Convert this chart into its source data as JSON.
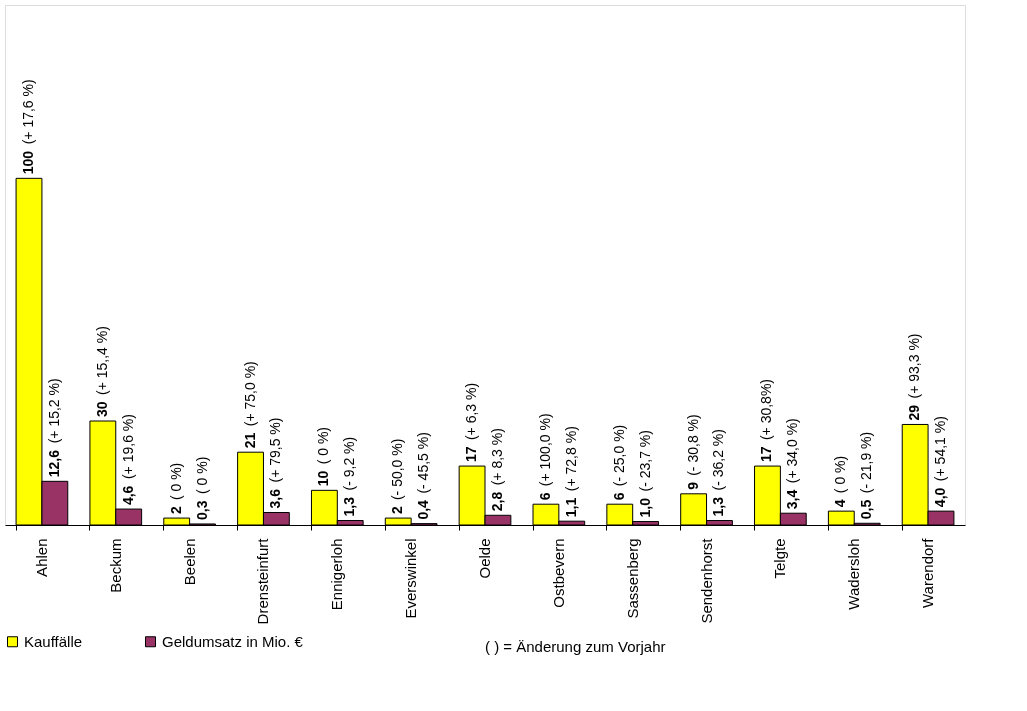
{
  "chart_data": {
    "type": "bar",
    "categories": [
      "Ahlen",
      "Beckum",
      "Beelen",
      "Drensteinfurt",
      "Ennigerloh",
      "Everswinkel",
      "Oelde",
      "Ostbevern",
      "Sassenberg",
      "Sendenhorst",
      "Telgte",
      "Wadersloh",
      "Warendorf"
    ],
    "series": [
      {
        "name": "Kauffälle",
        "color": "#ffff00",
        "values": [
          100,
          30,
          2,
          21,
          10,
          2,
          17,
          6,
          6,
          9,
          17,
          4,
          29
        ],
        "value_labels": [
          "100",
          "30",
          "2",
          "21",
          "10",
          "2",
          "17",
          "6",
          "6",
          "9",
          "17",
          "4",
          "29"
        ]
      },
      {
        "name": "Geldumsatz in Mio. €",
        "color": "#993366",
        "values": [
          12.6,
          4.6,
          0.3,
          3.6,
          1.3,
          0.4,
          2.8,
          1.1,
          1.0,
          1.3,
          3.4,
          0.5,
          4.0
        ],
        "value_labels": [
          "12,6",
          "4,6",
          "0,3",
          "3,6",
          "1,3",
          "0,4",
          "2,8",
          "1,1",
          "1,0",
          "1,3",
          "3,4",
          "0,5",
          "4,0"
        ]
      }
    ],
    "annotations": [
      {
        "text": "(+ 17,6 %)",
        "x": "Ahlen",
        "y": 100
      },
      {
        "text": "(+ 15,2 %)",
        "x": "Ahlen",
        "y": 12.6
      },
      {
        "text": "(+ 15,,4 %)",
        "x": "Beckum",
        "y": 30
      },
      {
        "text": "(+ 19,6 %)",
        "x": "Beckum",
        "y": 4.6
      },
      {
        "text": "( 0 %)",
        "x": "Beelen",
        "y": 2
      },
      {
        "text": "( 0 %)",
        "x": "Beelen",
        "y": 0.3
      },
      {
        "text": "(+ 75,0 %)",
        "x": "Drensteinfurt",
        "y": 21
      },
      {
        "text": "(+ 79,5 %)",
        "x": "Drensteinfurt",
        "y": 3.6
      },
      {
        "text": "( 0 %)",
        "x": "Ennigerloh",
        "y": 10
      },
      {
        "text": "(- 9,2 %)",
        "x": "Ennigerloh",
        "y": 1.3
      },
      {
        "text": "(- 50,0 %)",
        "x": "Everswinkel",
        "y": 2
      },
      {
        "text": "(- 45,5 %)",
        "x": "Everswinkel",
        "y": 0.4
      },
      {
        "text": "(+ 6,3 %)",
        "x": "Oelde",
        "y": 17
      },
      {
        "text": "(+ 8,3 %)",
        "x": "Oelde",
        "y": 2.8
      },
      {
        "text": "(+ 100,0 %)",
        "x": "Ostbevern",
        "y": 6
      },
      {
        "text": "(+ 72,8 %)",
        "x": "Ostbevern",
        "y": 1.1
      },
      {
        "text": "(- 25,0 %)",
        "x": "Sassenberg",
        "y": 6
      },
      {
        "text": "(- 23,7 %)",
        "x": "Sassenberg",
        "y": 1.0
      },
      {
        "text": "(- 30,8 %)",
        "x": "Sendenhorst",
        "y": 9
      },
      {
        "text": "(- 36,2 %)",
        "x": "Sendenhorst",
        "y": 1.3
      },
      {
        "text": "(+ 30,8%)",
        "x": "Telgte",
        "y": 17
      },
      {
        "text": "(+ 34,0 %)",
        "x": "Telgte",
        "y": 3.4
      },
      {
        "text": "( 0 %)",
        "x": "Wadersloh",
        "y": 4
      },
      {
        "text": "(- 21,9 %)",
        "x": "Wadersloh",
        "y": 0.5
      },
      {
        "text": "(+ 93,3 %)",
        "x": "Warendorf",
        "y": 29
      },
      {
        "text": "(+ 54,1 %)",
        "x": "Warendorf",
        "y": 4.0
      },
      "( ) = Änderung zum Vorjahr"
    ],
    "legend": "bottom left"
  }
}
